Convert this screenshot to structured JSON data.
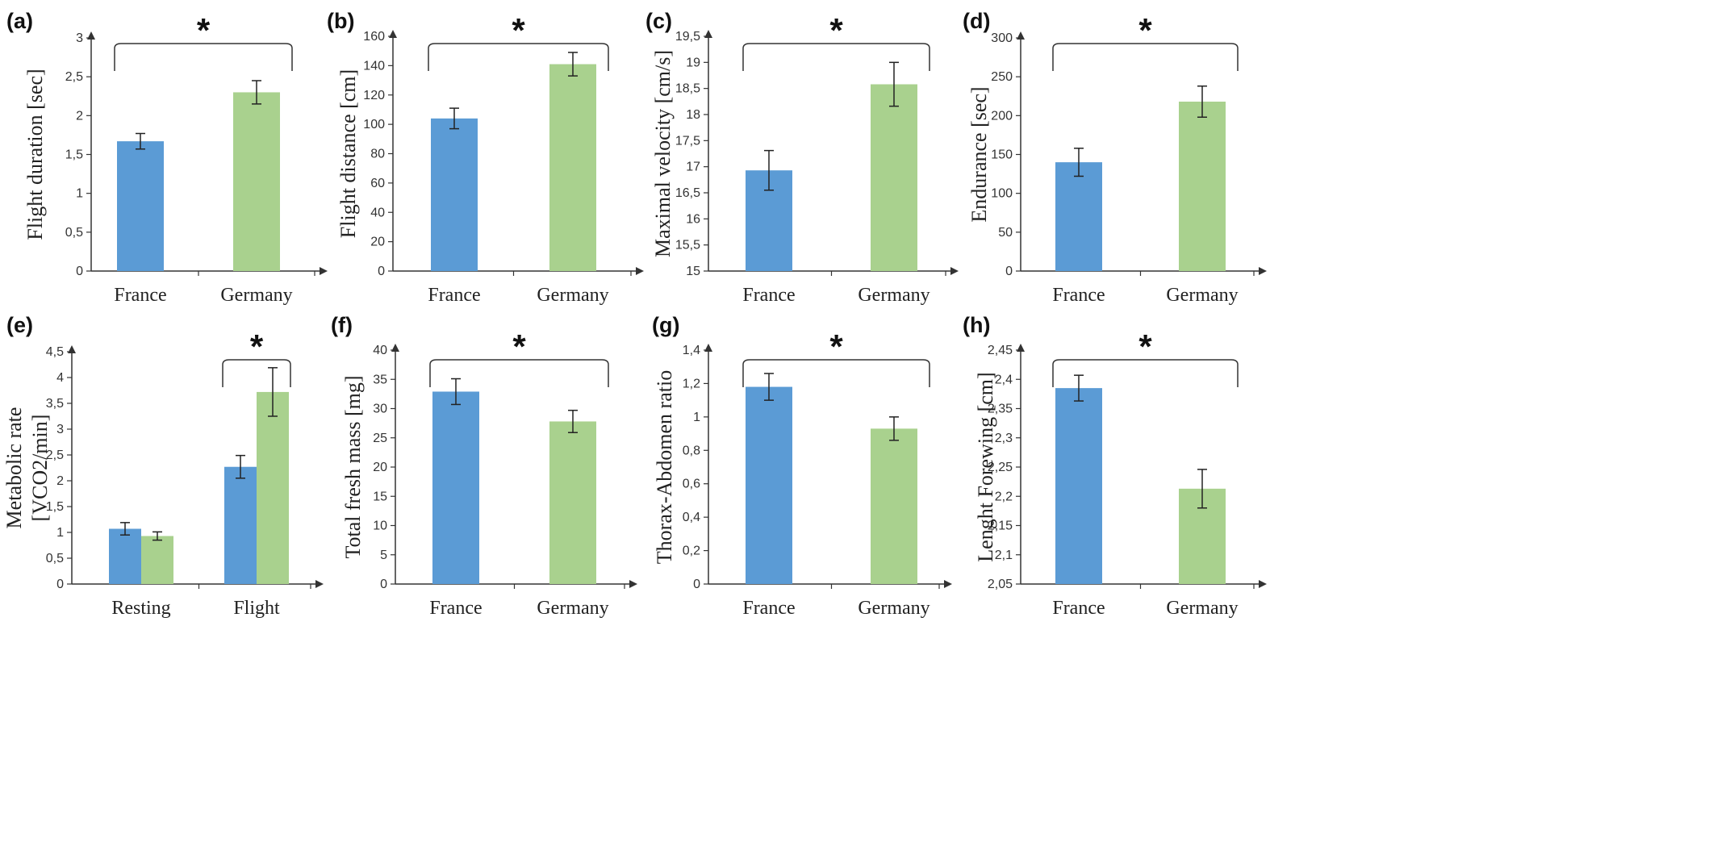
{
  "colors": {
    "france": "#5b9bd5",
    "germany": "#a9d18e"
  },
  "chart_data": [
    {
      "type": "bar",
      "panel": "(a)",
      "ylabel": "Flight duration [sec]",
      "categories": [
        "France",
        "Germany"
      ],
      "values": [
        1.67,
        2.3
      ],
      "errors": [
        0.1,
        0.15
      ],
      "ylim": [
        0,
        3
      ],
      "yticks": [
        "0",
        "0,5",
        "1",
        "1,5",
        "2",
        "2,5",
        "3"
      ],
      "significance": "*",
      "grid": false
    },
    {
      "type": "bar",
      "panel": "(b)",
      "ylabel": "Flight distance [cm]",
      "categories": [
        "France",
        "Germany"
      ],
      "values": [
        104,
        141
      ],
      "errors": [
        7,
        8
      ],
      "ylim": [
        0,
        160
      ],
      "yticks": [
        "0",
        "20",
        "40",
        "60",
        "80",
        "100",
        "120",
        "140",
        "160"
      ],
      "significance": "*",
      "grid": false
    },
    {
      "type": "bar",
      "panel": "(c)",
      "ylabel": "Maximal velocity [cm/s]",
      "categories": [
        "France",
        "Germany"
      ],
      "values": [
        16.93,
        18.58
      ],
      "errors": [
        0.38,
        0.42
      ],
      "ylim": [
        15,
        19.5
      ],
      "yticks": [
        "15",
        "15,5",
        "16",
        "16,5",
        "17",
        "17,5",
        "18",
        "18,5",
        "19",
        "19,5"
      ],
      "significance": "*",
      "grid": false
    },
    {
      "type": "bar",
      "panel": "(d)",
      "ylabel": "Endurance [sec]",
      "categories": [
        "France",
        "Germany"
      ],
      "values": [
        140,
        218
      ],
      "errors": [
        18,
        20
      ],
      "ylim": [
        0,
        300
      ],
      "yticks": [
        "0",
        "50",
        "100",
        "150",
        "200",
        "250",
        "300"
      ],
      "significance": "*",
      "grid": false
    },
    {
      "type": "bar",
      "panel": "(e)",
      "ylabel": "Metabolic rate",
      "ylabel2": "[VCO2/min]",
      "categories": [
        "Resting",
        "Flight"
      ],
      "series": [
        {
          "values": [
            1.07,
            2.27
          ],
          "errors": [
            0.12,
            0.22
          ]
        },
        {
          "values": [
            0.93,
            3.72
          ],
          "errors": [
            0.08,
            0.47
          ]
        }
      ],
      "ylim": [
        0,
        4.5
      ],
      "yticks": [
        "0",
        "0,5",
        "1",
        "1,5",
        "2",
        "2,5",
        "3",
        "3,5",
        "4",
        "4,5"
      ],
      "significance": "*",
      "significance_on": "Flight",
      "grid": false
    },
    {
      "type": "bar",
      "panel": "(f)",
      "ylabel": "Total fresh mass [mg]",
      "categories": [
        "France",
        "Germany"
      ],
      "values": [
        32.9,
        27.8
      ],
      "errors": [
        2.2,
        1.9
      ],
      "ylim": [
        0,
        40
      ],
      "yticks": [
        "0",
        "5",
        "10",
        "15",
        "20",
        "25",
        "30",
        "35",
        "40"
      ],
      "significance": "*",
      "grid": false
    },
    {
      "type": "bar",
      "panel": "(g)",
      "ylabel": "Thorax-Abdomen ratio",
      "categories": [
        "France",
        "Germany"
      ],
      "values": [
        1.18,
        0.93
      ],
      "errors": [
        0.08,
        0.07
      ],
      "ylim": [
        0,
        1.4
      ],
      "yticks": [
        "0",
        "0,2",
        "0,4",
        "0,6",
        "0,8",
        "1",
        "1,2",
        "1,4"
      ],
      "significance": "*",
      "grid": false
    },
    {
      "type": "bar",
      "panel": "(h)",
      "ylabel": "Lenght Forewing [cm]",
      "categories": [
        "France",
        "Germany"
      ],
      "values": [
        2.385,
        2.213
      ],
      "errors": [
        0.022,
        0.033
      ],
      "ylim": [
        2.05,
        2.45
      ],
      "yticks": [
        "2,05",
        "2,1",
        "2,15",
        "2,2",
        "2,25",
        "2,3",
        "2,35",
        "2,4",
        "2,45"
      ],
      "significance": "*",
      "grid": false
    }
  ]
}
